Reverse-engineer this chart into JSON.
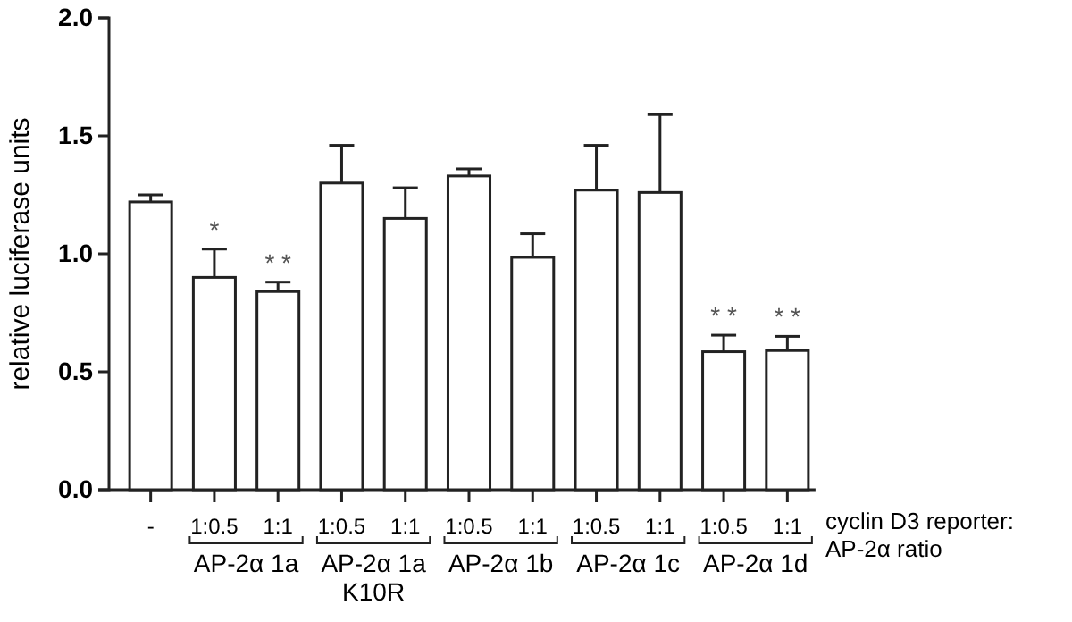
{
  "chart_data": {
    "type": "bar",
    "categories": [
      "-",
      "1:0.5",
      "1:1",
      "1:0.5",
      "1:1",
      "1:0.5",
      "1:1",
      "1:0.5",
      "1:1",
      "1:0.5",
      "1:1"
    ],
    "values": [
      1.22,
      0.9,
      0.84,
      1.3,
      1.15,
      1.33,
      0.985,
      1.27,
      1.26,
      0.585,
      0.59
    ],
    "errors": [
      0.03,
      0.12,
      0.04,
      0.16,
      0.13,
      0.03,
      0.1,
      0.19,
      0.33,
      0.07,
      0.06
    ],
    "value_labels": [
      null,
      "*",
      "* *",
      null,
      null,
      null,
      null,
      null,
      null,
      "* *",
      "* *"
    ],
    "color": "#ffffff",
    "ylabel": "relative luciferase units",
    "xlabel": "cyclin D3 reporter:\nAP-2α ratio",
    "annotations": [
      "AP-2α 1a",
      "AP-2α 1a\nK10R",
      "AP-2α 1b",
      "AP-2α 1c",
      "AP-2α 1d"
    ],
    "ylim": [
      0,
      2.0
    ],
    "yticks": [
      {
        "value": 0,
        "label": "0.0"
      },
      {
        "value": 0.5,
        "label": "0.5"
      },
      {
        "value": 1,
        "label": "1.0"
      },
      {
        "value": 1.5,
        "label": "1.5"
      },
      {
        "value": 2,
        "label": "2.0"
      }
    ],
    "grid": false
  }
}
